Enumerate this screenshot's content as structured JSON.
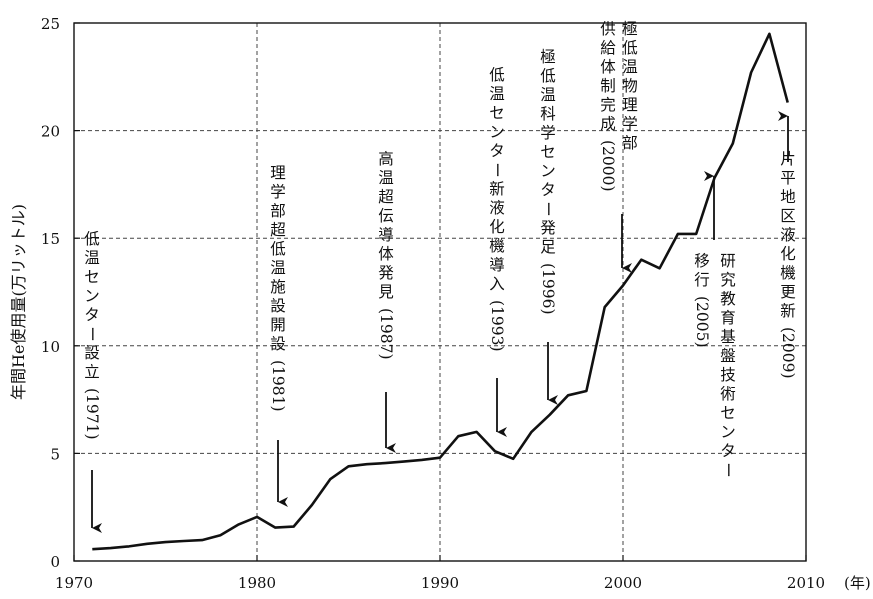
{
  "chart_data": {
    "type": "line",
    "title": "",
    "xlabel": "(年)",
    "ylabel": "年間He使用量(万リットル)",
    "xlim": [
      1970,
      2010
    ],
    "ylim": [
      0,
      25
    ],
    "xticks": [
      1970,
      1980,
      1990,
      2000,
      2010
    ],
    "yticks": [
      0,
      5,
      10,
      15,
      20,
      25
    ],
    "grid": "dashed",
    "series": [
      {
        "x": [
          1971,
          1972,
          1973,
          1974,
          1975,
          1976,
          1977,
          1978,
          1979,
          1980,
          1981,
          1982,
          1983,
          1984,
          1985,
          1986,
          1987,
          1988,
          1989,
          1990,
          1991,
          1992,
          1993,
          1994,
          1995,
          1996,
          1997,
          1998,
          1999,
          2000,
          2001,
          2002,
          2003,
          2004,
          2005,
          2006,
          2007,
          2008,
          2009
        ],
        "values": [
          0.55,
          0.6,
          0.68,
          0.8,
          0.88,
          0.93,
          0.97,
          1.2,
          1.7,
          2.05,
          1.55,
          1.6,
          2.6,
          3.8,
          4.4,
          4.5,
          4.55,
          4.62,
          4.7,
          4.8,
          5.8,
          6.0,
          5.1,
          4.75,
          6.0,
          6.8,
          7.7,
          7.9,
          11.8,
          12.8,
          14.0,
          13.6,
          15.2,
          15.2,
          17.8,
          19.4,
          22.7,
          24.5,
          21.3
        ]
      }
    ],
    "annotations": [
      {
        "label": "低温センター設立",
        "year_label": "(1971)",
        "year": 1971
      },
      {
        "label": "理学部超低温施設開設",
        "year_label": "(1981)",
        "year": 1981
      },
      {
        "label": "高温超伝導体発見",
        "year_label": "(1987)",
        "year": 1987
      },
      {
        "label": "低温センター新液化機導入",
        "year_label": "(1993)",
        "year": 1993
      },
      {
        "label": "極低温科学センター発足",
        "year_label": "(1996)",
        "year": 1996
      },
      {
        "label": "極低温物理学部",
        "label2": "供給体制完成",
        "year_label": "(2000)",
        "year": 2000
      },
      {
        "label": "研究教育基盤技術センター",
        "label2": "移行",
        "year_label": "(2005)",
        "year": 2005
      },
      {
        "label": "片平地区液化機更新",
        "year_label": "(2009)",
        "year": 2009
      }
    ]
  }
}
